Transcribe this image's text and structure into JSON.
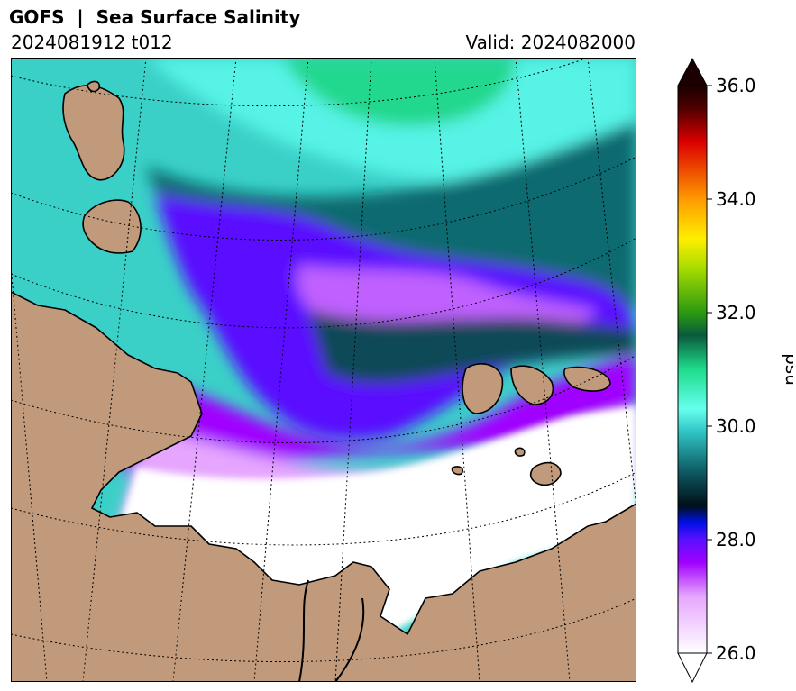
{
  "header": {
    "title": "GOFS  |  Sea Surface Salinity",
    "run": "2024081912 t012",
    "valid": "Valid: 2024082000"
  },
  "colorbar": {
    "unit": "psu",
    "min": 26.0,
    "max": 36.0,
    "ticks": [
      "26.0",
      "28.0",
      "30.0",
      "32.0",
      "34.0",
      "36.0"
    ],
    "tick_values": [
      26,
      28,
      30,
      32,
      34,
      36
    ],
    "stops": [
      {
        "value": 26.0,
        "color": "#ffffff"
      },
      {
        "value": 27.0,
        "color": "#e6a6ff"
      },
      {
        "value": 27.6,
        "color": "#a000ff"
      },
      {
        "value": 28.0,
        "color": "#5a10ff"
      },
      {
        "value": 28.3,
        "color": "#0010e8"
      },
      {
        "value": 28.6,
        "color": "#001018"
      },
      {
        "value": 29.2,
        "color": "#0e5a63"
      },
      {
        "value": 29.9,
        "color": "#2fc4c4"
      },
      {
        "value": 30.3,
        "color": "#66ffee"
      },
      {
        "value": 31.0,
        "color": "#1edc8c"
      },
      {
        "value": 31.6,
        "color": "#0a5a3c"
      },
      {
        "value": 32.0,
        "color": "#2a9a10"
      },
      {
        "value": 32.8,
        "color": "#aadd00"
      },
      {
        "value": 33.3,
        "color": "#ffee00"
      },
      {
        "value": 34.0,
        "color": "#ff9a00"
      },
      {
        "value": 35.0,
        "color": "#dd0000"
      },
      {
        "value": 35.6,
        "color": "#500000"
      },
      {
        "value": 36.0,
        "color": "#1a0000"
      }
    ]
  },
  "map": {
    "land_color": "#c19a7b",
    "ice_or_fresh_color": "#ffffff",
    "graticule": "dotted"
  }
}
